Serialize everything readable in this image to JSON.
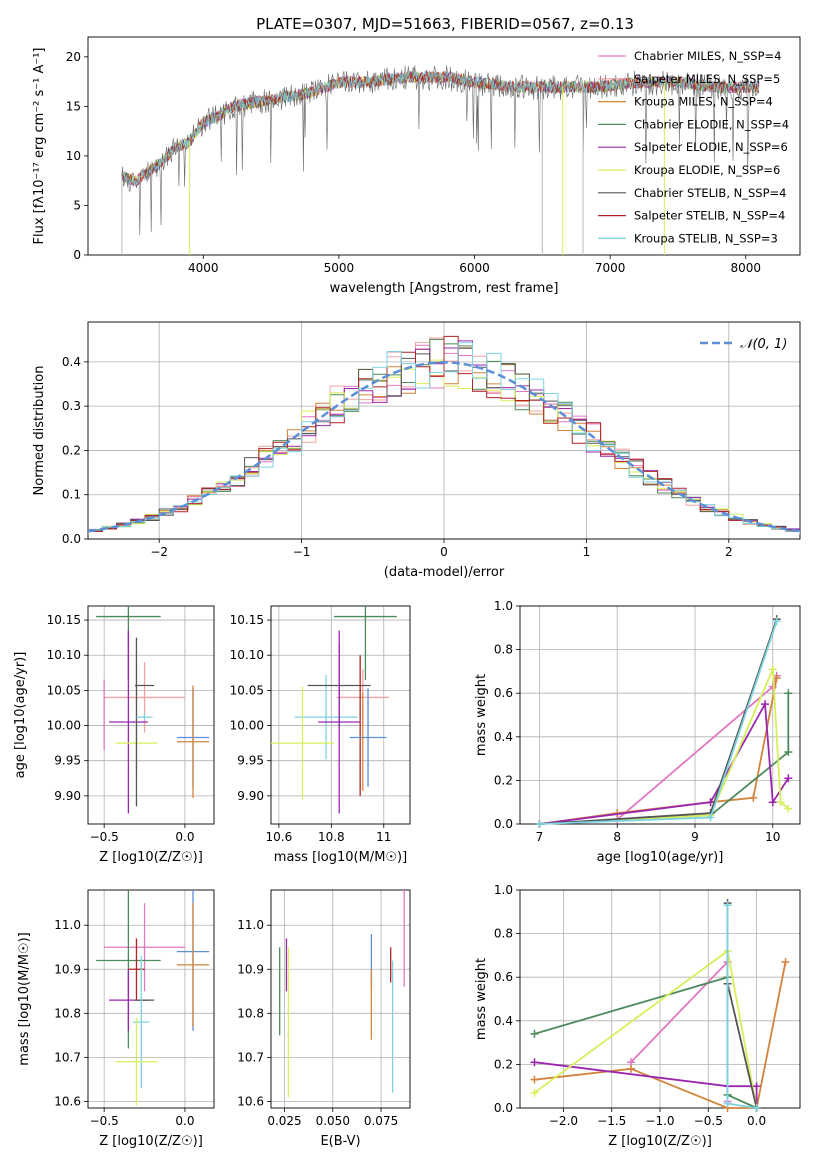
{
  "figure": {
    "title": "PLATE=0307, MJD=51663, FIBERID=0567, z=0.13"
  },
  "colors": {
    "grid": "#b0b0b0",
    "chabrier_miles": "#e377c2",
    "salpeter_miles": "#f4a3a3",
    "kroupa_miles": "#d2843c",
    "chabrier_elodie": "#4d8a5c",
    "salpeter_elodie": "#9b27b0",
    "kroupa_elodie": "#d7ef5a",
    "chabrier_stelib": "#555555",
    "salpeter_stelib": "#b22222",
    "kroupa_stelib": "#7dd3e0",
    "normal": "#5b8fd6"
  },
  "chart_data": [
    {
      "id": "spectrum",
      "type": "line",
      "title": "PLATE=0307, MJD=51663, FIBERID=0567, z=0.13",
      "xlabel": "wavelength [Angstrom, rest frame]",
      "ylabel": "Flux [fλ10⁻¹⁷ erg cm⁻² s⁻¹ A⁻¹]",
      "xlim": [
        3150,
        8400
      ],
      "ylim": [
        0,
        22
      ],
      "xticks": [
        4000,
        5000,
        6000,
        7000,
        8000
      ],
      "yticks": [
        0,
        5,
        10,
        15,
        20
      ],
      "series": [
        {
          "name": "Chabrier MILES, N_SSP=4",
          "color_key": "chabrier_miles"
        },
        {
          "name": "Salpeter MILES, N_SSP=5",
          "color_key": "salpeter_miles"
        },
        {
          "name": "Kroupa MILES, N_SSP=4",
          "color_key": "kroupa_miles"
        },
        {
          "name": "Chabrier ELODIE, N_SSP=4",
          "color_key": "chabrier_elodie"
        },
        {
          "name": "Salpeter ELODIE, N_SSP=6",
          "color_key": "salpeter_elodie"
        },
        {
          "name": "Kroupa ELODIE, N_SSP=6",
          "color_key": "kroupa_elodie"
        },
        {
          "name": "Chabrier STELIB, N_SSP=4",
          "color_key": "chabrier_stelib"
        },
        {
          "name": "Salpeter STELIB, N_SSP=4",
          "color_key": "salpeter_stelib"
        },
        {
          "name": "Kroupa STELIB, N_SSP=3",
          "color_key": "kroupa_stelib"
        }
      ],
      "envelope": {
        "x": [
          3400,
          3500,
          3600,
          3700,
          3800,
          3900,
          4000,
          4100,
          4200,
          4400,
          4600,
          4800,
          5000,
          5200,
          5500,
          5800,
          6000,
          6300,
          6600,
          6900,
          7200,
          7500,
          7800,
          8100
        ],
        "y": [
          8.0,
          7.5,
          8.5,
          9.5,
          11.0,
          11.5,
          13.5,
          14.0,
          15.0,
          15.5,
          16.0,
          16.5,
          17.5,
          17.5,
          18.0,
          18.0,
          17.5,
          17.0,
          17.0,
          17.0,
          17.5,
          17.5,
          17.0,
          17.0
        ]
      },
      "drops_x": [
        3400,
        3900,
        6500,
        6650,
        6800,
        7400
      ],
      "legend_loc": "upper right"
    },
    {
      "id": "residuals",
      "type": "line",
      "xlabel": "(data-model)/error",
      "ylabel": "Normed distribution",
      "xlim": [
        -2.5,
        2.5
      ],
      "ylim": [
        0,
        0.49
      ],
      "xticks": [
        -2,
        -1,
        0,
        1,
        2
      ],
      "yticks": [
        0.0,
        0.1,
        0.2,
        0.3,
        0.4
      ],
      "reference": {
        "name": "𝒩(0, 1)",
        "mean": 0,
        "sigma": 1
      },
      "legend_loc": "upper right",
      "grid": true
    },
    {
      "id": "age_vs_Z",
      "type": "scatter",
      "xlabel": "Z [log10(Z/Z☉)]",
      "ylabel": "age  [log10(age/yr)]",
      "xlim": [
        -0.6,
        0.18
      ],
      "ylim": [
        9.86,
        10.17
      ],
      "xticks": [
        -0.5,
        0.0
      ],
      "xticklabels": [
        "−0.5",
        "0.0"
      ],
      "yticks": [
        9.9,
        9.95,
        10.0,
        10.05,
        10.1,
        10.15
      ],
      "points": [
        {
          "color_key": "chabrier_elodie",
          "x": -0.35,
          "xerr": 0.2,
          "y": 10.155,
          "yerr": 0.09
        },
        {
          "color_key": "salpeter_miles",
          "x": -0.25,
          "xerr": 0.25,
          "y": 10.04,
          "yerr": 0.05
        },
        {
          "color_key": "salpeter_elodie",
          "x": -0.35,
          "xerr": 0.12,
          "y": 10.005,
          "yerr": 0.13
        },
        {
          "color_key": "kroupa_elodie",
          "x": -0.3,
          "xerr": 0.13,
          "y": 9.975,
          "yerr": 0.04
        },
        {
          "color_key": "chabrier_stelib",
          "x": -0.3,
          "xerr": 0.0,
          "y": 10.005,
          "yerr": 0.12
        },
        {
          "color_key": "kroupa_stelib",
          "x": -0.25,
          "xerr": 0.05,
          "y": 10.012,
          "yerr": 0.005
        },
        {
          "color_key": "chabrier_stelib",
          "x": -0.25,
          "xerr": 0.06,
          "y": 10.057,
          "yerr": 0.0
        },
        {
          "color_key": "normal",
          "x": 0.05,
          "xerr": 0.1,
          "y": 9.983,
          "yerr": 0.07
        },
        {
          "color_key": "kroupa_miles",
          "x": 0.05,
          "xerr": 0.1,
          "y": 9.977,
          "yerr": 0.08
        },
        {
          "color_key": "chabrier_miles",
          "x": -0.5,
          "xerr": 0.0,
          "y": 10.015,
          "yerr": 0.05
        }
      ]
    },
    {
      "id": "age_vs_mass",
      "type": "scatter",
      "xlabel": "mass [log10(M/M☉)]",
      "xlim": [
        10.57,
        11.1
      ],
      "ylim": [
        9.86,
        10.17
      ],
      "xticks": [
        10.6,
        10.8,
        11.0
      ],
      "yticks": [
        9.9,
        9.95,
        10.0,
        10.05,
        10.1,
        10.15
      ],
      "points": [
        {
          "color_key": "chabrier_elodie",
          "x": 10.93,
          "xerr": 0.12,
          "y": 10.155,
          "yerr": 0.09
        },
        {
          "color_key": "salpeter_miles",
          "x": 10.92,
          "xerr": 0.1,
          "y": 10.04,
          "yerr": 0.04
        },
        {
          "color_key": "kroupa_stelib",
          "x": 10.78,
          "xerr": 0.12,
          "y": 10.012,
          "yerr": 0.06
        },
        {
          "color_key": "kroupa_elodie",
          "x": 10.69,
          "xerr": 0.12,
          "y": 9.975,
          "yerr": 0.08
        },
        {
          "color_key": "chabrier_stelib",
          "x": 10.83,
          "xerr": 0.12,
          "y": 10.057,
          "yerr": 0.06
        },
        {
          "color_key": "salpeter_elodie",
          "x": 10.83,
          "xerr": 0.08,
          "y": 10.005,
          "yerr": 0.13
        },
        {
          "color_key": "salpeter_stelib",
          "x": 10.91,
          "xerr": 0.0,
          "y": 10.0,
          "yerr": 0.1
        },
        {
          "color_key": "normal",
          "x": 10.94,
          "xerr": 0.07,
          "y": 9.983,
          "yerr": 0.07
        },
        {
          "color_key": "kroupa_miles",
          "x": 10.92,
          "xerr": 0.0,
          "y": 9.977,
          "yerr": 0.07
        }
      ]
    },
    {
      "id": "mass_weight_vs_age",
      "type": "line",
      "xlabel": "age  [log10(age/yr)]",
      "ylabel": "mass weight",
      "xlim": [
        6.75,
        10.35
      ],
      "ylim": [
        0,
        1.0
      ],
      "xticks": [
        7,
        8,
        9,
        10
      ],
      "yticks": [
        0.0,
        0.2,
        0.4,
        0.6,
        0.8,
        1.0
      ],
      "series": [
        {
          "color_key": "chabrier_miles",
          "x": [
            7.0,
            8.0,
            10.0,
            10.05
          ],
          "y": [
            0.0,
            0.02,
            0.63,
            0.68
          ]
        },
        {
          "color_key": "kroupa_miles",
          "x": [
            7.0,
            8.0,
            9.2,
            9.75,
            10.05
          ],
          "y": [
            0.0,
            0.05,
            0.1,
            0.12,
            0.67
          ]
        },
        {
          "color_key": "chabrier_elodie",
          "x": [
            7.0,
            9.2,
            10.2,
            10.2
          ],
          "y": [
            0.0,
            0.04,
            0.33,
            0.6
          ]
        },
        {
          "color_key": "salpeter_elodie",
          "x": [
            7.0,
            9.2,
            9.9,
            10.0,
            10.2
          ],
          "y": [
            0.0,
            0.1,
            0.55,
            0.1,
            0.21
          ]
        },
        {
          "color_key": "kroupa_elodie",
          "x": [
            7.0,
            9.2,
            10.0,
            10.1,
            10.2
          ],
          "y": [
            0.0,
            0.04,
            0.71,
            0.1,
            0.07
          ]
        },
        {
          "color_key": "chabrier_stelib",
          "x": [
            7.0,
            9.2,
            10.05
          ],
          "y": [
            0.0,
            0.05,
            0.94
          ]
        },
        {
          "color_key": "kroupa_stelib",
          "x": [
            7.0,
            9.2,
            10.05
          ],
          "y": [
            0.0,
            0.03,
            0.93
          ]
        }
      ]
    },
    {
      "id": "mass_vs_Z",
      "type": "scatter",
      "xlabel": "Z [log10(Z/Z☉)]",
      "ylabel": "mass [log10(M/M☉)]",
      "xlim": [
        -0.6,
        0.18
      ],
      "ylim": [
        10.585,
        11.08
      ],
      "xticks": [
        -0.5,
        0.0
      ],
      "xticklabels": [
        "−0.5",
        "0.0"
      ],
      "yticks": [
        10.6,
        10.7,
        10.8,
        10.9,
        11.0
      ],
      "points": [
        {
          "color_key": "chabrier_miles",
          "x": -0.25,
          "xerr": 0.25,
          "y": 10.95,
          "yerr": 0.1
        },
        {
          "color_key": "chabrier_elodie",
          "x": -0.35,
          "xerr": 0.2,
          "y": 10.92,
          "yerr": 0.2
        },
        {
          "color_key": "salpeter_stelib",
          "x": -0.3,
          "xerr": 0.05,
          "y": 10.9,
          "yerr": 0.07
        },
        {
          "color_key": "salpeter_elodie",
          "x": -0.35,
          "xerr": 0.12,
          "y": 10.83,
          "yerr": 0.07
        },
        {
          "color_key": "chabrier_stelib",
          "x": -0.25,
          "xerr": 0.06,
          "y": 10.83,
          "yerr": 0.0
        },
        {
          "color_key": "kroupa_stelib",
          "x": -0.27,
          "xerr": 0.05,
          "y": 10.78,
          "yerr": 0.15
        },
        {
          "color_key": "kroupa_elodie",
          "x": -0.3,
          "xerr": 0.13,
          "y": 10.69,
          "yerr": 0.1
        },
        {
          "color_key": "normal",
          "x": 0.05,
          "xerr": 0.1,
          "y": 10.94,
          "yerr": 0.18
        },
        {
          "color_key": "kroupa_miles",
          "x": 0.05,
          "xerr": 0.1,
          "y": 10.91,
          "yerr": 0.14
        }
      ]
    },
    {
      "id": "mass_vs_ebv",
      "type": "scatter",
      "xlabel": "E(B-V)",
      "xlim": [
        0.018,
        0.09
      ],
      "ylim": [
        10.585,
        11.08
      ],
      "xticks": [
        0.025,
        0.05,
        0.075
      ],
      "xticklabels": [
        "0.025",
        "0.050",
        "0.075"
      ],
      "yticks": [
        10.6,
        10.7,
        10.8,
        10.9,
        11.0
      ],
      "points": [
        {
          "color_key": "chabrier_elodie",
          "x": 0.0225,
          "xerr": 0.0,
          "y": 10.85,
          "yerr": 0.1
        },
        {
          "color_key": "salpeter_elodie",
          "x": 0.026,
          "xerr": 0.0,
          "y": 10.91,
          "yerr": 0.06
        },
        {
          "color_key": "kroupa_elodie",
          "x": 0.027,
          "xerr": 0.0,
          "y": 10.78,
          "yerr": 0.17
        },
        {
          "color_key": "normal",
          "x": 0.07,
          "xerr": 0.0,
          "y": 10.92,
          "yerr": 0.06
        },
        {
          "color_key": "kroupa_miles",
          "x": 0.07,
          "xerr": 0.0,
          "y": 10.82,
          "yerr": 0.08
        },
        {
          "color_key": "salpeter_stelib",
          "x": 0.08,
          "xerr": 0.0,
          "y": 10.91,
          "yerr": 0.04
        },
        {
          "color_key": "kroupa_stelib",
          "x": 0.081,
          "xerr": 0.0,
          "y": 10.77,
          "yerr": 0.15
        },
        {
          "color_key": "chabrier_miles",
          "x": 0.087,
          "xerr": 0.0,
          "y": 11.0,
          "yerr": 0.14
        }
      ]
    },
    {
      "id": "mass_weight_vs_Z",
      "type": "line",
      "xlabel": "Z [log10(Z/Z☉)]",
      "ylabel": "mass weight",
      "xlim": [
        -2.45,
        0.45
      ],
      "ylim": [
        0,
        1.0
      ],
      "xticks": [
        -2.0,
        -1.5,
        -1.0,
        -0.5,
        0.0
      ],
      "xticklabels": [
        "−2.0",
        "−1.5",
        "−1.0",
        "−0.5",
        "0.0"
      ],
      "yticks": [
        0.0,
        0.2,
        0.4,
        0.6,
        0.8,
        1.0
      ],
      "series": [
        {
          "color_key": "chabrier_miles",
          "x": [
            -1.3,
            -0.3,
            -0.3
          ],
          "y": [
            0.21,
            0.67,
            0.03
          ]
        },
        {
          "color_key": "kroupa_miles",
          "x": [
            -2.3,
            -1.3,
            -0.3,
            0.0,
            0.3
          ],
          "y": [
            0.13,
            0.18,
            0.0,
            0.0,
            0.67
          ]
        },
        {
          "color_key": "chabrier_elodie",
          "x": [
            -2.3,
            -0.3,
            -0.3,
            0.0
          ],
          "y": [
            0.34,
            0.6,
            0.06,
            0.0
          ]
        },
        {
          "color_key": "salpeter_elodie",
          "x": [
            -2.3,
            -0.3,
            0.0,
            0.0
          ],
          "y": [
            0.21,
            0.1,
            0.1,
            0.0
          ]
        },
        {
          "color_key": "kroupa_elodie",
          "x": [
            -2.3,
            -0.3,
            0.0
          ],
          "y": [
            0.07,
            0.72,
            0.0
          ]
        },
        {
          "color_key": "chabrier_stelib",
          "x": [
            -0.3,
            -0.3,
            0.0
          ],
          "y": [
            0.94,
            0.57,
            0.0
          ]
        },
        {
          "color_key": "kroupa_stelib",
          "x": [
            -0.3,
            -0.3,
            0.0
          ],
          "y": [
            0.93,
            0.02,
            0.0
          ]
        }
      ]
    }
  ]
}
